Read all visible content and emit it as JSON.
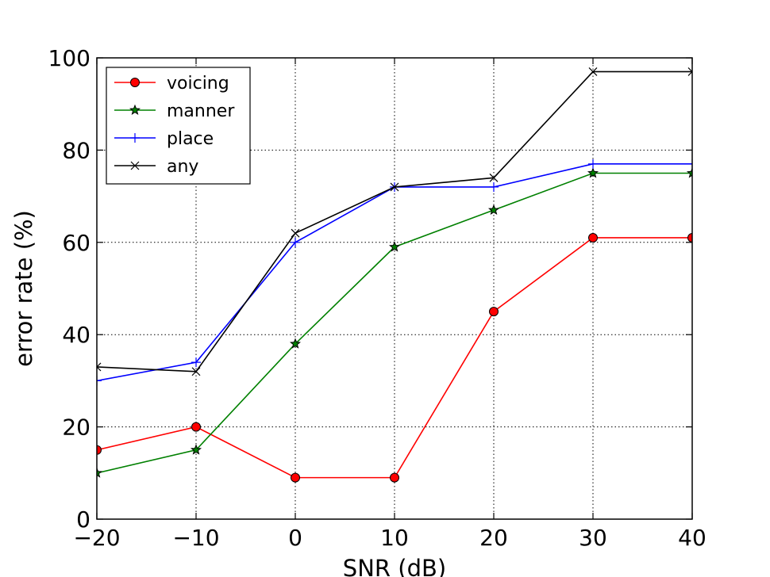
{
  "chart_data": {
    "type": "line",
    "xlabel": "SNR (dB)",
    "ylabel": "error rate (%)",
    "xlim": [
      -20,
      40
    ],
    "ylim": [
      0,
      100
    ],
    "xticks": [
      -20,
      -10,
      0,
      10,
      20,
      30,
      40
    ],
    "xtick_labels": [
      "−20",
      "−10",
      "0",
      "10",
      "20",
      "30",
      "40"
    ],
    "yticks": [
      0,
      20,
      40,
      60,
      80,
      100
    ],
    "ytick_labels": [
      "0",
      "20",
      "40",
      "60",
      "80",
      "100"
    ],
    "grid": true,
    "legend_position": "top-left",
    "x": [
      -20,
      -10,
      0,
      10,
      20,
      30,
      40
    ],
    "series": [
      {
        "name": "voicing",
        "color": "#ff0000",
        "marker": "circle",
        "values": [
          15,
          20,
          9,
          9,
          45,
          61,
          61
        ]
      },
      {
        "name": "manner",
        "color": "#008000",
        "marker": "star",
        "values": [
          10,
          15,
          38,
          59,
          67,
          75,
          75
        ]
      },
      {
        "name": "place",
        "color": "#0000ff",
        "marker": "plus",
        "values": [
          30,
          34,
          60,
          72,
          72,
          77,
          77
        ]
      },
      {
        "name": "any",
        "color": "#000000",
        "marker": "x",
        "values": [
          33,
          32,
          62,
          72,
          74,
          97,
          97
        ]
      }
    ]
  }
}
